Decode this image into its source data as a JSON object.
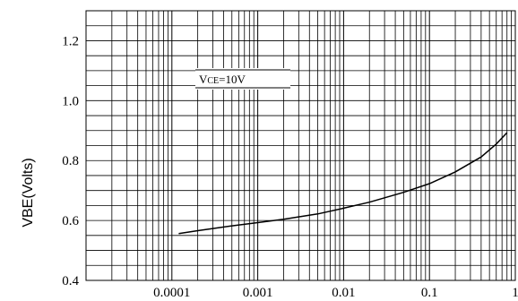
{
  "chart_data": {
    "type": "line",
    "title": "",
    "xlabel": "",
    "ylabel": "VBE(Volts)",
    "x_scale": "log",
    "xlim": [
      1e-05,
      1
    ],
    "ylim": [
      0.4,
      1.3
    ],
    "grid": true,
    "x_tick_labels": [
      "0.0001",
      "0.001",
      "0.01",
      "0.1",
      "1"
    ],
    "y_tick_labels": [
      "0.4",
      "0.6",
      "0.8",
      "1.0",
      "1.2"
    ],
    "annotation": {
      "main": "V",
      "sub": "CE",
      "rest": "=10V"
    },
    "series": [
      {
        "x": [
          0.00012,
          0.0002,
          0.0005,
          0.001,
          0.002,
          0.005,
          0.01,
          0.02,
          0.05,
          0.1,
          0.2,
          0.4,
          0.6,
          0.8
        ],
        "y": [
          0.556,
          0.566,
          0.582,
          0.593,
          0.604,
          0.622,
          0.641,
          0.661,
          0.694,
          0.723,
          0.762,
          0.812,
          0.855,
          0.893
        ]
      }
    ],
    "colors": {
      "line": "#000000",
      "grid": "#000000",
      "background": "#ffffff"
    }
  }
}
